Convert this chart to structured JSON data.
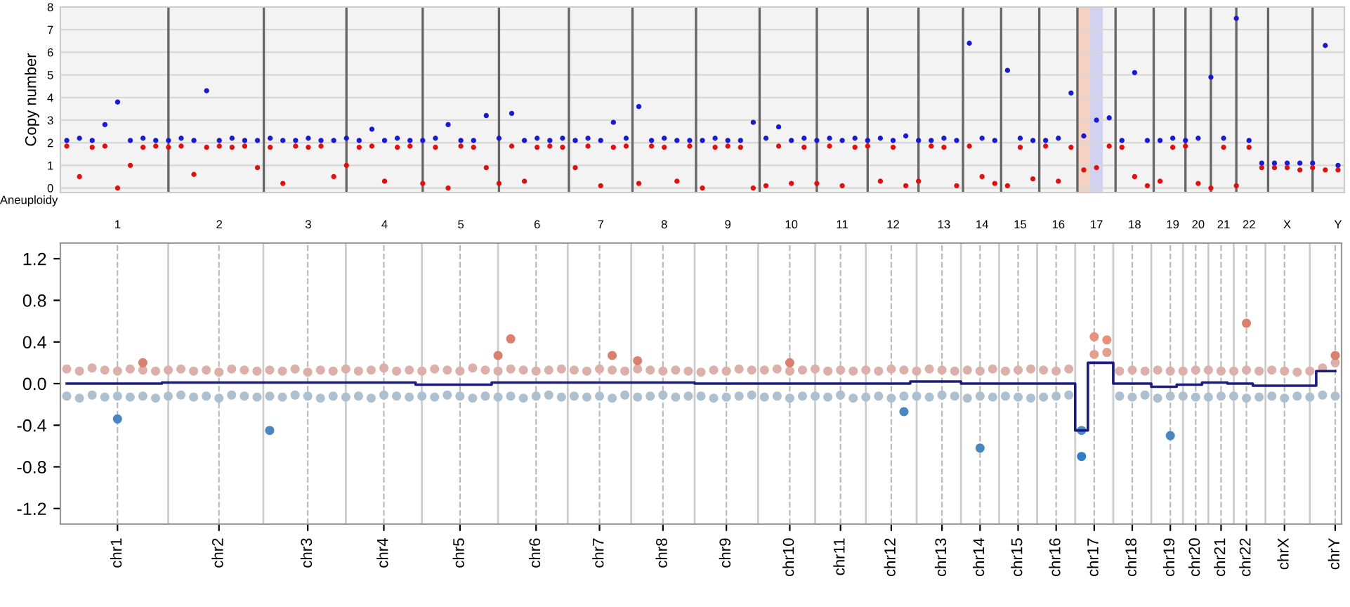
{
  "chart_data": [
    {
      "type": "scatter",
      "ylabel": "Copy number",
      "annotations": [
        "Aneuploidy"
      ],
      "marker": "circle",
      "grid": true,
      "ylim": [
        -0.2,
        8
      ],
      "yticks": [
        0,
        1,
        2,
        3,
        4,
        5,
        6,
        7,
        8
      ],
      "categories": [
        null,
        null,
        null,
        null,
        "1",
        null,
        null,
        null,
        null,
        null,
        null,
        null,
        "2",
        null,
        null,
        null,
        null,
        null,
        null,
        "3",
        null,
        null,
        null,
        null,
        null,
        "4",
        null,
        null,
        null,
        null,
        null,
        "5",
        null,
        null,
        null,
        null,
        null,
        "6",
        null,
        null,
        null,
        null,
        "7",
        null,
        null,
        null,
        null,
        "8",
        null,
        null,
        null,
        null,
        "9",
        null,
        null,
        null,
        null,
        "10",
        null,
        null,
        null,
        "11",
        null,
        null,
        null,
        "12",
        null,
        null,
        null,
        "13",
        null,
        null,
        "14",
        null,
        null,
        "15",
        null,
        null,
        "16",
        null,
        null,
        "17",
        null,
        null,
        "18",
        null,
        null,
        "19",
        null,
        "20",
        null,
        "21",
        null,
        "22",
        null,
        null,
        "X",
        null,
        null,
        null,
        "Y"
      ],
      "series": [
        {
          "color": "#1a1ad0",
          "values": [
            2.1,
            2.2,
            2.1,
            2.8,
            3.8,
            2.1,
            2.2,
            2.1,
            2.1,
            2.2,
            2.1,
            4.3,
            2.1,
            2.2,
            2.1,
            2.1,
            2.2,
            2.1,
            2.1,
            2.2,
            2.1,
            2.1,
            2.2,
            2.1,
            2.6,
            2.1,
            2.2,
            2.1,
            2.1,
            2.2,
            2.8,
            2.1,
            2.1,
            3.2,
            2.2,
            3.3,
            2.1,
            2.2,
            2.1,
            2.2,
            2.1,
            2.2,
            2.1,
            2.9,
            2.2,
            3.6,
            2.1,
            2.2,
            2.1,
            2.1,
            2.1,
            2.2,
            2.1,
            2.1,
            2.9,
            2.2,
            2.7,
            2.1,
            2.2,
            2.1,
            2.2,
            2.1,
            2.2,
            2.1,
            2.2,
            2.1,
            2.3,
            2.1,
            2.1,
            2.2,
            2.1,
            6.4,
            2.2,
            2.1,
            5.2,
            2.2,
            2.1,
            2.1,
            2.2,
            4.2,
            2.3,
            3.0,
            3.1,
            2.1,
            5.1,
            2.1,
            2.1,
            2.2,
            2.1,
            2.2,
            4.9,
            2.2,
            7.5,
            2.1,
            1.1,
            1.1,
            1.1,
            1.1,
            1.1,
            6.3,
            1.0
          ]
        },
        {
          "color": "#e01010",
          "values": [
            1.85,
            0.5,
            1.8,
            1.85,
            0.0,
            1.0,
            1.8,
            1.85,
            1.8,
            1.85,
            0.6,
            1.8,
            1.85,
            1.8,
            1.85,
            0.9,
            1.8,
            0.2,
            1.85,
            1.8,
            1.85,
            0.5,
            1.0,
            1.8,
            1.85,
            0.3,
            1.8,
            1.85,
            0.2,
            1.8,
            0.0,
            1.85,
            1.8,
            0.9,
            0.2,
            1.85,
            0.3,
            1.8,
            1.85,
            1.8,
            0.9,
            1.85,
            0.1,
            1.8,
            1.85,
            0.2,
            1.85,
            1.8,
            0.3,
            1.85,
            0.0,
            1.8,
            1.85,
            1.8,
            0.0,
            0.1,
            1.85,
            0.2,
            1.8,
            0.2,
            1.85,
            0.1,
            1.8,
            1.85,
            0.3,
            1.8,
            0.1,
            0.3,
            1.85,
            1.8,
            0.1,
            1.85,
            0.5,
            0.2,
            0.1,
            1.8,
            0.4,
            1.85,
            0.3,
            1.8,
            0.8,
            0.9,
            1.85,
            1.8,
            0.5,
            0.1,
            0.3,
            1.8,
            1.85,
            0.2,
            0.0,
            1.8,
            0.1,
            1.8,
            0.9,
            0.9,
            0.9,
            0.8,
            0.9,
            0.8,
            0.8
          ]
        }
      ]
    },
    {
      "type": "scatter",
      "marker": "circle",
      "grid": "x",
      "ylim": [
        -1.35,
        1.35
      ],
      "yticks": [
        1.2,
        0.8,
        0.4,
        {
          "value": 0,
          "label": "0.0"
        },
        -0.4,
        -0.8,
        -1.2
      ],
      "categories": [
        null,
        null,
        null,
        null,
        "chr1",
        null,
        null,
        null,
        null,
        null,
        null,
        null,
        "chr2",
        null,
        null,
        null,
        null,
        null,
        null,
        "chr3",
        null,
        null,
        null,
        null,
        null,
        "chr4",
        null,
        null,
        null,
        null,
        null,
        "chr5",
        null,
        null,
        null,
        null,
        null,
        "chr6",
        null,
        null,
        null,
        null,
        "chr7",
        null,
        null,
        null,
        null,
        "chr8",
        null,
        null,
        null,
        null,
        "chr9",
        null,
        null,
        null,
        null,
        "chr10",
        null,
        null,
        null,
        "chr11",
        null,
        null,
        null,
        "chr12",
        null,
        null,
        null,
        "chr13",
        null,
        null,
        "chr14",
        null,
        null,
        "chr15",
        null,
        null,
        "chr16",
        null,
        null,
        "chr17",
        null,
        null,
        "chr18",
        null,
        null,
        "chr19",
        null,
        "chr20",
        null,
        "chr21",
        null,
        "chr22",
        null,
        null,
        "chrX",
        null,
        null,
        null,
        "chrY"
      ],
      "series": [
        {
          "color": "#dcb0a8",
          "values": [
            0.14,
            0.12,
            0.15,
            0.13,
            0.12,
            0.14,
            0.13,
            0.12,
            0.13,
            0.14,
            0.12,
            0.13,
            0.11,
            0.14,
            0.13,
            0.12,
            0.13,
            0.12,
            0.14,
            0.11,
            0.13,
            0.12,
            0.14,
            0.12,
            0.13,
            0.15,
            0.12,
            0.13,
            0.12,
            0.14,
            0.13,
            0.12,
            0.15,
            0.13,
            0.12,
            0.14,
            0.13,
            0.12,
            0.13,
            0.14,
            0.13,
            0.12,
            0.14,
            0.13,
            0.12,
            0.14,
            0.13,
            0.12,
            0.13,
            0.12,
            0.11,
            0.13,
            0.12,
            0.14,
            0.13,
            0.13,
            0.14,
            0.12,
            0.13,
            0.14,
            0.12,
            0.13,
            0.12,
            0.13,
            0.12,
            0.14,
            0.13,
            0.12,
            0.14,
            0.13,
            0.12,
            0.13,
            0.12,
            0.14,
            0.12,
            0.13,
            0.14,
            0.13,
            0.12,
            0.14,
            null,
            null,
            null,
            0.12,
            0.13,
            0.12,
            0.13,
            0.12,
            0.12,
            0.13,
            0.13,
            0.12,
            0.12,
            0.13,
            0.12,
            0.13,
            0.12,
            0.11,
            0.12,
            0.15,
            0.2
          ]
        },
        {
          "color": "#adc0d0",
          "values": [
            -0.12,
            -0.14,
            -0.11,
            -0.13,
            -0.12,
            -0.13,
            -0.12,
            -0.14,
            -0.12,
            -0.11,
            -0.13,
            -0.12,
            -0.14,
            -0.11,
            -0.12,
            -0.13,
            -0.12,
            -0.13,
            -0.11,
            -0.12,
            -0.14,
            -0.12,
            -0.13,
            -0.12,
            -0.14,
            -0.11,
            -0.12,
            -0.13,
            -0.12,
            -0.13,
            -0.11,
            -0.12,
            -0.14,
            -0.12,
            -0.13,
            -0.12,
            -0.14,
            -0.12,
            -0.11,
            -0.13,
            -0.12,
            -0.13,
            -0.12,
            -0.14,
            -0.11,
            -0.13,
            -0.12,
            -0.11,
            -0.13,
            -0.12,
            -0.12,
            -0.14,
            -0.13,
            -0.12,
            -0.11,
            -0.13,
            -0.12,
            -0.14,
            -0.12,
            -0.12,
            -0.13,
            -0.11,
            -0.14,
            -0.13,
            -0.12,
            -0.14,
            -0.12,
            -0.12,
            -0.13,
            -0.11,
            -0.12,
            -0.14,
            -0.12,
            -0.13,
            -0.12,
            -0.13,
            -0.14,
            -0.13,
            -0.12,
            -0.11,
            null,
            null,
            null,
            -0.12,
            -0.13,
            -0.11,
            -0.14,
            -0.12,
            -0.12,
            -0.13,
            -0.13,
            -0.12,
            -0.12,
            -0.14,
            -0.13,
            -0.12,
            -0.14,
            -0.12,
            -0.13,
            -0.11,
            -0.12
          ]
        },
        {
          "color": "#d98070",
          "values": [
            null,
            null,
            null,
            null,
            null,
            null,
            0.2,
            null,
            null,
            null,
            null,
            null,
            null,
            null,
            null,
            null,
            null,
            null,
            null,
            null,
            null,
            null,
            null,
            null,
            null,
            null,
            null,
            null,
            null,
            null,
            null,
            null,
            null,
            null,
            0.27,
            0.43,
            null,
            null,
            null,
            null,
            null,
            null,
            null,
            0.27,
            null,
            0.22,
            null,
            null,
            null,
            null,
            null,
            null,
            null,
            null,
            null,
            null,
            null,
            0.2,
            null,
            null,
            null,
            null,
            null,
            null,
            null,
            null,
            null,
            null,
            null,
            null,
            null,
            null,
            null,
            null,
            null,
            null,
            null,
            null,
            null,
            null,
            null,
            null,
            null,
            null,
            null,
            null,
            null,
            null,
            null,
            null,
            null,
            null,
            null,
            0.58,
            null,
            null,
            null,
            null,
            null,
            null,
            0.27
          ]
        },
        {
          "color": "#4a86c0",
          "values": [
            null,
            null,
            null,
            null,
            -0.34,
            null,
            null,
            null,
            null,
            null,
            null,
            null,
            null,
            null,
            null,
            null,
            -0.45,
            null,
            null,
            null,
            null,
            null,
            null,
            null,
            null,
            null,
            null,
            null,
            null,
            null,
            null,
            null,
            null,
            null,
            null,
            null,
            null,
            null,
            null,
            null,
            null,
            null,
            null,
            null,
            null,
            null,
            null,
            null,
            null,
            null,
            null,
            null,
            null,
            null,
            null,
            null,
            null,
            null,
            null,
            null,
            null,
            null,
            null,
            null,
            null,
            null,
            -0.27,
            null,
            null,
            null,
            null,
            null,
            -0.62,
            null,
            null,
            null,
            null,
            null,
            null,
            null,
            null,
            null,
            null,
            null,
            null,
            null,
            null,
            -0.5,
            null,
            null,
            null,
            null,
            null,
            null,
            null,
            null,
            null,
            null,
            null,
            null,
            null
          ]
        },
        {
          "color": "#e8907a",
          "values": [
            null,
            null,
            null,
            null,
            null,
            null,
            null,
            null,
            null,
            null,
            null,
            null,
            null,
            null,
            null,
            null,
            null,
            null,
            null,
            null,
            null,
            null,
            null,
            null,
            null,
            null,
            null,
            null,
            null,
            null,
            null,
            null,
            null,
            null,
            null,
            null,
            null,
            null,
            null,
            null,
            null,
            null,
            null,
            null,
            null,
            null,
            null,
            null,
            null,
            null,
            null,
            null,
            null,
            null,
            null,
            null,
            null,
            null,
            null,
            null,
            null,
            null,
            null,
            null,
            null,
            null,
            null,
            null,
            null,
            null,
            null,
            null,
            null,
            null,
            null,
            null,
            null,
            null,
            null,
            null,
            null,
            0.45,
            0.42,
            null,
            null,
            null,
            null,
            null,
            null,
            null,
            null,
            null,
            null,
            null,
            null,
            null,
            null,
            null,
            null,
            null,
            null
          ]
        },
        {
          "color": "#e3a08e",
          "values": [
            null,
            null,
            null,
            null,
            null,
            null,
            null,
            null,
            null,
            null,
            null,
            null,
            null,
            null,
            null,
            null,
            null,
            null,
            null,
            null,
            null,
            null,
            null,
            null,
            null,
            null,
            null,
            null,
            null,
            null,
            null,
            null,
            null,
            null,
            null,
            null,
            null,
            null,
            null,
            null,
            null,
            null,
            null,
            null,
            null,
            null,
            null,
            null,
            null,
            null,
            null,
            null,
            null,
            null,
            null,
            null,
            null,
            null,
            null,
            null,
            null,
            null,
            null,
            null,
            null,
            null,
            null,
            null,
            null,
            null,
            null,
            null,
            null,
            null,
            null,
            null,
            null,
            null,
            null,
            null,
            null,
            0.28,
            0.3,
            null,
            null,
            null,
            null,
            null,
            null,
            null,
            null,
            null,
            null,
            null,
            null,
            null,
            null,
            null,
            null,
            null,
            null
          ]
        },
        {
          "color": "#2f7dc8",
          "values": [
            null,
            null,
            null,
            null,
            null,
            null,
            null,
            null,
            null,
            null,
            null,
            null,
            null,
            null,
            null,
            null,
            null,
            null,
            null,
            null,
            null,
            null,
            null,
            null,
            null,
            null,
            null,
            null,
            null,
            null,
            null,
            null,
            null,
            null,
            null,
            null,
            null,
            null,
            null,
            null,
            null,
            null,
            null,
            null,
            null,
            null,
            null,
            null,
            null,
            null,
            null,
            null,
            null,
            null,
            null,
            null,
            null,
            null,
            null,
            null,
            null,
            null,
            null,
            null,
            null,
            null,
            null,
            null,
            null,
            null,
            null,
            null,
            null,
            null,
            null,
            null,
            null,
            null,
            null,
            null,
            -0.7,
            null,
            null,
            null,
            null,
            null,
            null,
            null,
            null,
            null,
            null,
            null,
            null,
            null,
            null,
            null,
            null,
            null,
            null,
            null,
            null
          ]
        },
        {
          "color": "#4a8ccc",
          "values": [
            null,
            null,
            null,
            null,
            null,
            null,
            null,
            null,
            null,
            null,
            null,
            null,
            null,
            null,
            null,
            null,
            null,
            null,
            null,
            null,
            null,
            null,
            null,
            null,
            null,
            null,
            null,
            null,
            null,
            null,
            null,
            null,
            null,
            null,
            null,
            null,
            null,
            null,
            null,
            null,
            null,
            null,
            null,
            null,
            null,
            null,
            null,
            null,
            null,
            null,
            null,
            null,
            null,
            null,
            null,
            null,
            null,
            null,
            null,
            null,
            null,
            null,
            null,
            null,
            null,
            null,
            null,
            null,
            null,
            null,
            null,
            null,
            null,
            null,
            null,
            null,
            null,
            null,
            null,
            null,
            -0.45,
            null,
            null,
            null,
            null,
            null,
            null,
            null,
            null,
            null,
            null,
            null,
            null,
            null,
            null,
            null,
            null,
            null,
            null,
            null,
            null
          ]
        },
        {
          "type": "step",
          "marker": "none",
          "color": "#1c1c80",
          "values": [
            0,
            0,
            0,
            0,
            0,
            0,
            0,
            0,
            0.01,
            0.01,
            0.01,
            0.01,
            0.01,
            0.01,
            0.01,
            0.01,
            0.01,
            0.01,
            0.01,
            0.01,
            0.01,
            0.01,
            0.01,
            0.01,
            0.01,
            0.01,
            0.01,
            0.01,
            -0.01,
            -0.01,
            -0.01,
            -0.01,
            -0.01,
            -0.01,
            0.01,
            0.01,
            0.01,
            0.01,
            0.01,
            0.01,
            0.01,
            0.01,
            0.01,
            0.01,
            0.01,
            0.01,
            0.01,
            0.01,
            0.01,
            0.01,
            0,
            0,
            0,
            0,
            0,
            0,
            0,
            0,
            0,
            0,
            0,
            0,
            0,
            0,
            0,
            0,
            0,
            0.02,
            0.02,
            0.02,
            0.02,
            0,
            0,
            0,
            0,
            0,
            0,
            0,
            0,
            0,
            -0.45,
            0.2,
            0.2,
            0,
            0,
            0,
            -0.03,
            -0.03,
            -0.01,
            -0.01,
            0.01,
            0.01,
            0,
            0,
            -0.02,
            -0.02,
            -0.02,
            -0.02,
            -0.02,
            0.12,
            0.12
          ]
        }
      ]
    }
  ]
}
